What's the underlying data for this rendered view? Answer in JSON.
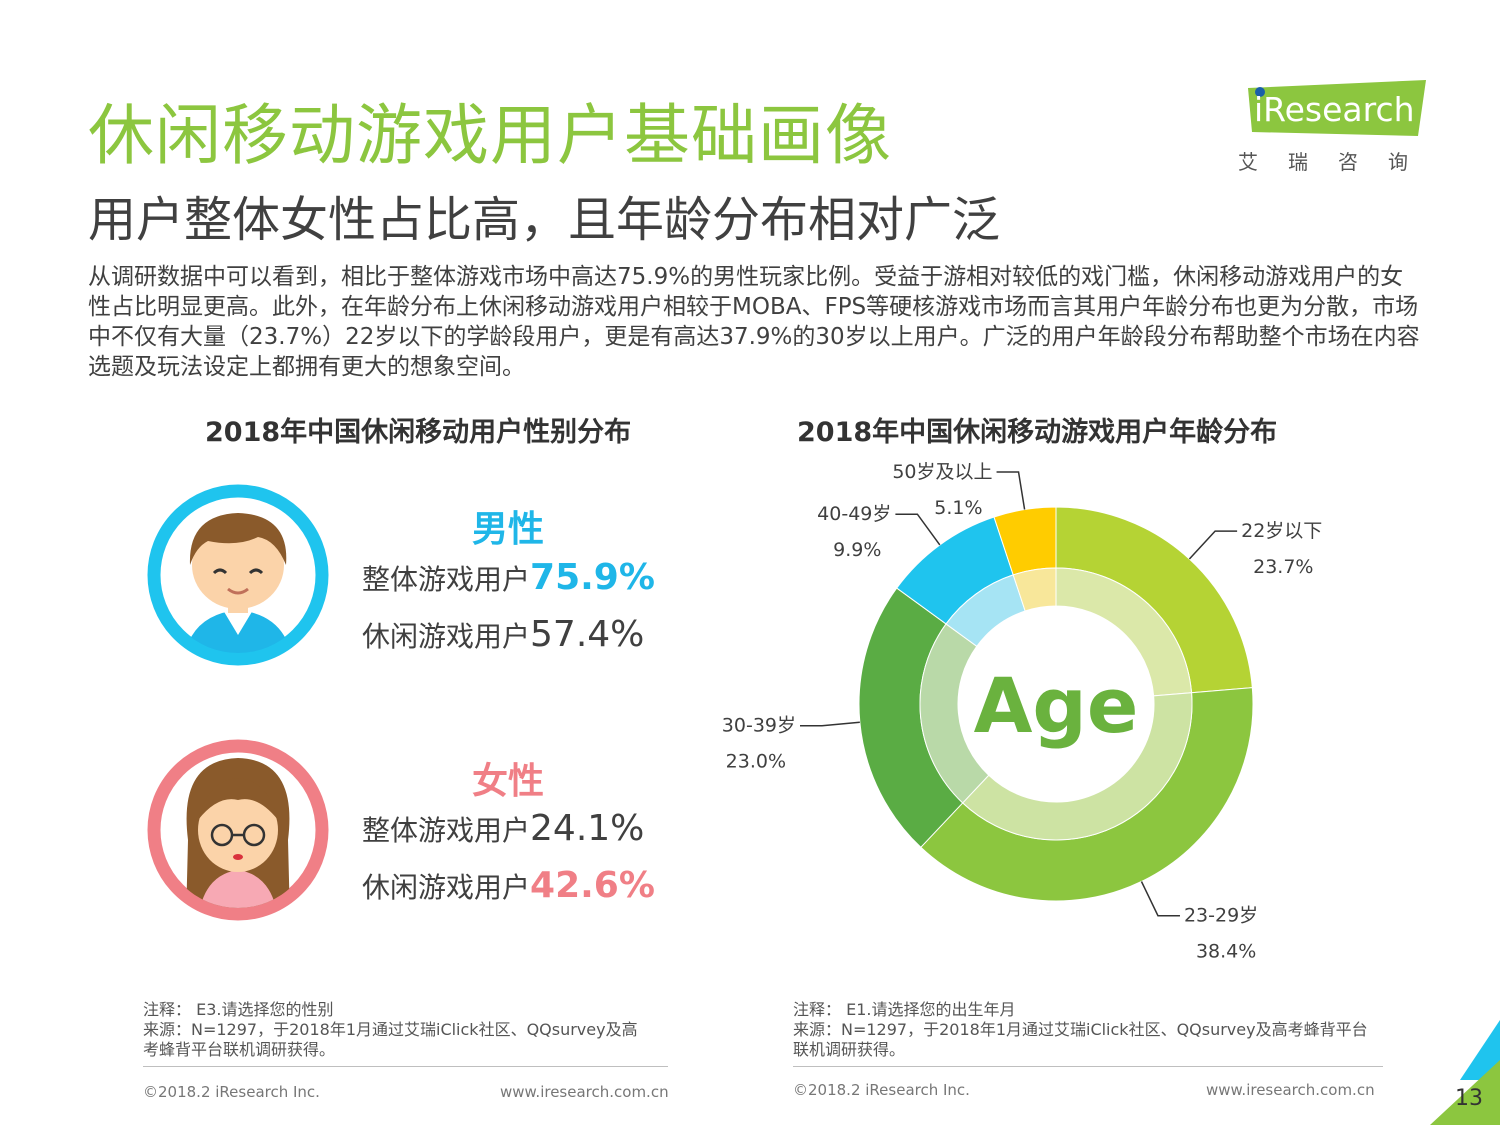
{
  "header": {
    "title": "休闲移动游戏用户基础画像",
    "subtitle": "用户整体女性占比高，且年龄分布相对广泛",
    "body": "从调研数据中可以看到，相比于整体游戏市场中高达75.9%的男性玩家比例。受益于游相对较低的戏门槛，休闲移动游戏用户的女性占比明显更高。此外，在年龄分布上休闲移动游戏用户相较于MOBA、FPS等硬核游戏市场而言其用户年龄分布也更为分散，市场中不仅有大量（23.7%）22岁以下的学龄段用户，更是有高达37.9%的30岁以上用户。广泛的用户年龄段分布帮助整个市场在内容选题及玩法设定上都拥有更大的想象空间。"
  },
  "logo": {
    "name": "iResearch",
    "cn": "艾瑞咨询"
  },
  "gender_chart": {
    "title": "2018年中国休闲移动用户性别分布",
    "male": {
      "label": "男性",
      "overall_label": "整体游戏用户",
      "overall_value": "75.9%",
      "casual_label": "休闲游戏用户",
      "casual_value": "57.4%"
    },
    "female": {
      "label": "女性",
      "overall_label": "整体游戏用户",
      "overall_value": "24.1%",
      "casual_label": "休闲游戏用户",
      "casual_value": "42.6%"
    },
    "note": "注释：  E3.请选择您的性别",
    "source": "来源：N=1297，于2018年1月通过艾瑞iClick社区、QQsurvey及高考蜂背平台联机调研获得。",
    "copyright": "©2018.2 iResearch Inc.",
    "url": "www.iresearch.com.cn"
  },
  "chart_data": {
    "type": "pie",
    "title": "2018年中国休闲移动游戏用户年龄分布",
    "center_label": "Age",
    "categories": [
      "22岁以下",
      "23-29岁",
      "30-39岁",
      "40-49岁",
      "50岁及以上"
    ],
    "values": [
      23.7,
      38.4,
      23.0,
      9.9,
      5.1
    ],
    "value_labels": [
      "23.7%",
      "38.4%",
      "23.0%",
      "9.9%",
      "5.1%"
    ],
    "colors": [
      "#b5d334",
      "#8cc63f",
      "#5aac44",
      "#1fc4ee",
      "#ffcc00"
    ],
    "inner_colors": [
      "#dbe8a9",
      "#cde3a3",
      "#b9d9a8",
      "#a6e4f4",
      "#f8e79a"
    ]
  },
  "age_notes": {
    "note": "注释：  E1.请选择您的出生年月",
    "source": "来源：N=1297，于2018年1月通过艾瑞iClick社区、QQsurvey及高考蜂背平台联机调研获得。",
    "copyright": "©2018.2 iResearch Inc.",
    "url": "www.iresearch.com.cn"
  },
  "page_number": "13",
  "colors": {
    "green": "#8cc63f",
    "blue": "#1fb6e8",
    "pink": "#f07f86"
  }
}
